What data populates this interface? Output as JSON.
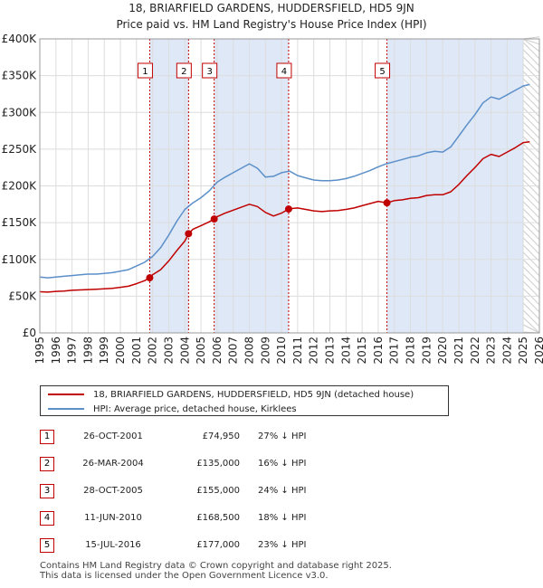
{
  "chart_data": {
    "type": "line",
    "title": "18, BRIARFIELD GARDENS, HUDDERSFIELD, HD5 9JN",
    "subtitle": "Price paid vs. HM Land Registry's House Price Index (HPI)",
    "xlim": [
      1995,
      2026
    ],
    "ylim": [
      0,
      400000
    ],
    "x_ticks": [
      1995,
      1996,
      1997,
      1998,
      1999,
      2000,
      2001,
      2002,
      2003,
      2004,
      2005,
      2006,
      2007,
      2008,
      2009,
      2010,
      2011,
      2012,
      2013,
      2014,
      2015,
      2016,
      2017,
      2018,
      2019,
      2020,
      2021,
      2022,
      2023,
      2024,
      2025,
      2026
    ],
    "y_ticks": [
      {
        "value": 0,
        "label": "£0"
      },
      {
        "value": 50000,
        "label": "£50K"
      },
      {
        "value": 100000,
        "label": "£100K"
      },
      {
        "value": 150000,
        "label": "£150K"
      },
      {
        "value": 200000,
        "label": "£200K"
      },
      {
        "value": 250000,
        "label": "£250K"
      },
      {
        "value": 300000,
        "label": "£300K"
      },
      {
        "value": 350000,
        "label": "£350K"
      },
      {
        "value": 400000,
        "label": "£400K"
      }
    ],
    "series": [
      {
        "name": "HPI: Average price, detached house, Kirklees",
        "color": "#5b8fc9",
        "x": [
          1995,
          1995.5,
          1996,
          1996.5,
          1997,
          1997.5,
          1998,
          1998.5,
          1999,
          1999.5,
          2000,
          2000.5,
          2001,
          2001.5,
          2002,
          2002.5,
          2003,
          2003.5,
          2004,
          2004.5,
          2005,
          2005.5,
          2006,
          2006.5,
          2007,
          2007.5,
          2008,
          2008.5,
          2009,
          2009.5,
          2010,
          2010.5,
          2011,
          2011.5,
          2012,
          2012.5,
          2013,
          2013.5,
          2014,
          2014.5,
          2015,
          2015.5,
          2016,
          2016.5,
          2017,
          2017.5,
          2018,
          2018.5,
          2019,
          2019.5,
          2020,
          2020.5,
          2021,
          2021.5,
          2022,
          2022.5,
          2023,
          2023.5,
          2024,
          2024.5,
          2025,
          2025.4
        ],
        "y": [
          76000,
          75000,
          76000,
          77000,
          78000,
          79000,
          80000,
          80000,
          81000,
          82000,
          84000,
          86000,
          91000,
          96000,
          104000,
          116000,
          133000,
          152000,
          168000,
          177000,
          184000,
          193000,
          205000,
          212000,
          218000,
          224000,
          230000,
          224000,
          212000,
          213000,
          218000,
          220000,
          214000,
          211000,
          208000,
          207000,
          207000,
          208000,
          210000,
          213000,
          217000,
          221000,
          226000,
          230000,
          233000,
          236000,
          239000,
          241000,
          245000,
          247000,
          246000,
          253000,
          268000,
          283000,
          297000,
          313000,
          321000,
          318000,
          324000,
          330000,
          336000,
          338000
        ]
      },
      {
        "name": "18, BRIARFIELD GARDENS, HUDDERSFIELD, HD5 9JN (detached house)",
        "color": "#c00000",
        "x": [
          1995,
          1995.5,
          1996,
          1996.5,
          1997,
          1997.5,
          1998,
          1998.5,
          1999,
          1999.5,
          2000,
          2000.5,
          2001,
          2001.5,
          2001.82,
          2002,
          2002.5,
          2003,
          2003.5,
          2004,
          2004.23,
          2004.5,
          2005,
          2005.5,
          2005.82,
          2006,
          2006.5,
          2007,
          2007.5,
          2008,
          2008.5,
          2009,
          2009.5,
          2010,
          2010.44,
          2010.5,
          2011,
          2011.5,
          2012,
          2012.5,
          2013,
          2013.5,
          2014,
          2014.5,
          2015,
          2015.5,
          2016,
          2016.54,
          2017,
          2017.5,
          2018,
          2018.5,
          2019,
          2019.5,
          2020,
          2020.5,
          2021,
          2021.5,
          2022,
          2022.5,
          2023,
          2023.5,
          2024,
          2024.5,
          2025,
          2025.4
        ],
        "y": [
          56000,
          55500,
          56500,
          57000,
          58000,
          58500,
          59000,
          59500,
          60000,
          60500,
          62000,
          63500,
          67000,
          71000,
          74950,
          79000,
          86000,
          98000,
          112000,
          125000,
          135000,
          141000,
          146000,
          151000,
          155000,
          158000,
          163000,
          167000,
          171000,
          175000,
          172000,
          164000,
          159000,
          163000,
          168500,
          169000,
          170000,
          168000,
          166000,
          165000,
          166000,
          166500,
          168000,
          170000,
          173000,
          176000,
          179000,
          177000,
          180000,
          181000,
          183000,
          184000,
          187000,
          188000,
          188000,
          192000,
          202000,
          214000,
          225000,
          237000,
          243000,
          240000,
          246000,
          252000,
          259000,
          260000
        ]
      }
    ],
    "sales": [
      {
        "id": "1",
        "x": 2001.82,
        "price": 74950,
        "date": "26-OCT-2001",
        "price_label": "£74,950",
        "hpi": "27% ↓ HPI"
      },
      {
        "id": "2",
        "x": 2004.23,
        "price": 135000,
        "date": "26-MAR-2004",
        "price_label": "£135,000",
        "hpi": "16% ↓ HPI"
      },
      {
        "id": "3",
        "x": 2005.82,
        "price": 155000,
        "date": "28-OCT-2005",
        "price_label": "£155,000",
        "hpi": "24% ↓ HPI"
      },
      {
        "id": "4",
        "x": 2010.44,
        "price": 168500,
        "date": "11-JUN-2010",
        "price_label": "£168,500",
        "hpi": "18% ↓ HPI"
      },
      {
        "id": "5",
        "x": 2016.54,
        "price": 177000,
        "date": "15-JUL-2016",
        "price_label": "£177,000",
        "hpi": "23% ↓ HPI"
      }
    ],
    "shaded_ranges": [
      [
        2001.82,
        2004.23
      ],
      [
        2005.82,
        2010.44
      ],
      [
        2016.54,
        2025.0
      ]
    ],
    "forecast_start": 2025.0,
    "legend_position": "bottom"
  },
  "legend": {
    "property_label": "18, BRIARFIELD GARDENS, HUDDERSFIELD, HD5 9JN (detached house)",
    "hpi_label": "HPI: Average price, detached house, Kirklees"
  },
  "footer": {
    "line1": "Contains HM Land Registry data © Crown copyright and database right 2025.",
    "line2": "This data is licensed under the Open Government Licence v3.0."
  },
  "colors": {
    "property": "#c00000",
    "hpi": "#5b8fc9",
    "shade": "#dfe8f7",
    "grid": "#dddddd"
  }
}
